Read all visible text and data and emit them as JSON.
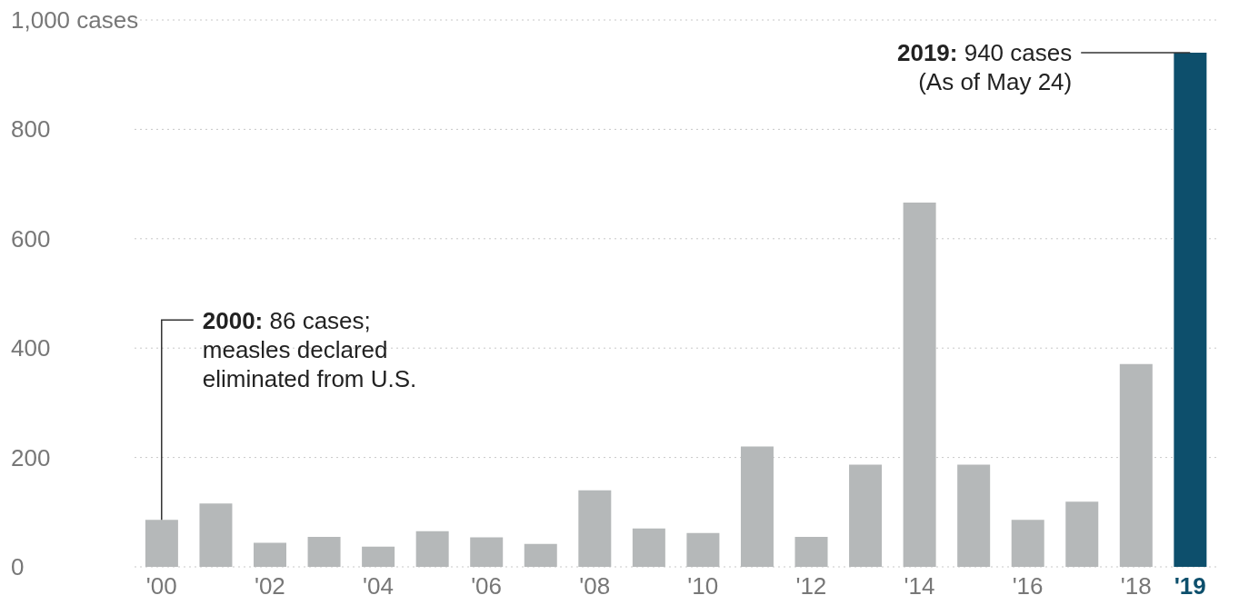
{
  "chart_data": {
    "type": "bar",
    "categories": [
      "'00",
      null,
      "'02",
      null,
      "'04",
      null,
      "'06",
      null,
      "'08",
      null,
      "'10",
      null,
      "'12",
      null,
      "'14",
      null,
      "'16",
      null,
      "'18",
      "'19"
    ],
    "values": [
      86,
      116,
      44,
      55,
      37,
      65,
      54,
      42,
      140,
      70,
      62,
      220,
      55,
      187,
      666,
      187,
      86,
      119,
      371,
      940
    ],
    "colors": [
      "#b5b8b9",
      "#b5b8b9",
      "#b5b8b9",
      "#b5b8b9",
      "#b5b8b9",
      "#b5b8b9",
      "#b5b8b9",
      "#b5b8b9",
      "#b5b8b9",
      "#b5b8b9",
      "#b5b8b9",
      "#b5b8b9",
      "#b5b8b9",
      "#b5b8b9",
      "#b5b8b9",
      "#b5b8b9",
      "#b5b8b9",
      "#b5b8b9",
      "#b5b8b9",
      "#0d4f6c"
    ],
    "ylim": [
      0,
      1000
    ],
    "yticks": [
      0,
      200,
      400,
      600,
      800,
      {
        "value": 1000,
        "label": "1,000 cases"
      }
    ],
    "grid": "y",
    "annotations": [
      {
        "text": "2019: 940 cases\n(As of May 24)",
        "x": "'19",
        "y": 940
      },
      {
        "text": "2000: 86 cases;\nmeasles declared\neliminated from U.S.",
        "x": "'00",
        "y": 86
      }
    ]
  }
}
